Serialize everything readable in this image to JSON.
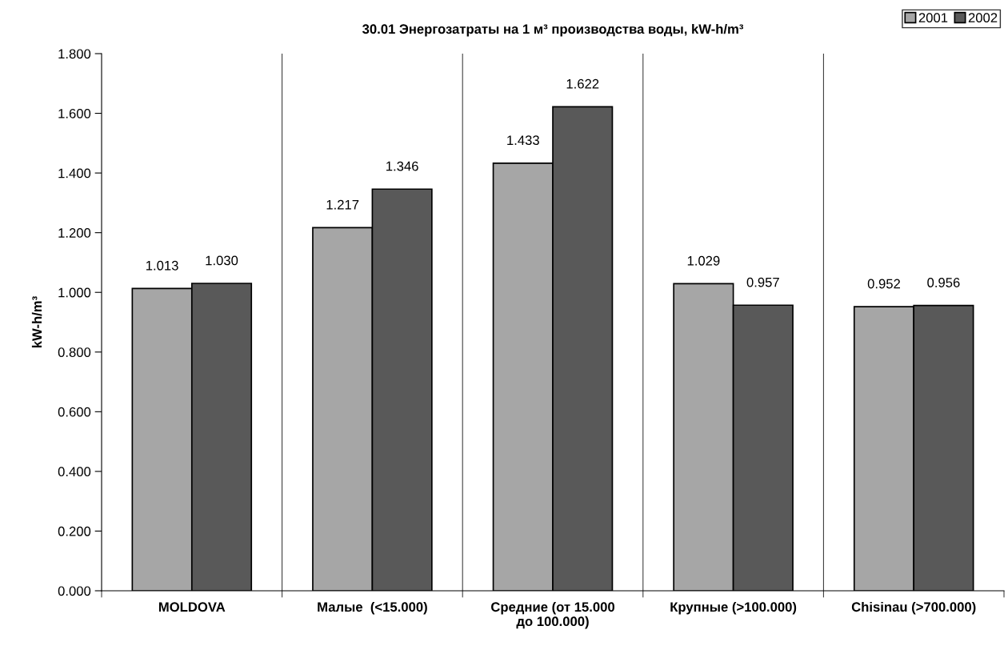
{
  "chart_data": {
    "type": "bar",
    "title": "30.01 Энергозатраты на 1 м³ производства воды, kW-h/m³",
    "ylabel": "kW-h/m³",
    "categories": [
      "MOLDOVA",
      "Малые  (<15.000)",
      "Средние (от 15.000\nдо 100.000)",
      "Крупные (>100.000)",
      "Chisinau (>700.000)"
    ],
    "series": [
      {
        "name": "2001",
        "color": "#a6a6a6",
        "values": [
          1.013,
          1.217,
          1.433,
          1.029,
          0.952
        ],
        "value_labels": [
          "1.013",
          "1.217",
          "1.433",
          "1.029",
          "0.952"
        ]
      },
      {
        "name": "2002",
        "color": "#595959",
        "values": [
          1.03,
          1.346,
          1.622,
          0.957,
          0.956
        ],
        "value_labels": [
          "1.030",
          "1.346",
          "1.622",
          "0.957",
          "0.956"
        ]
      }
    ],
    "ylim": [
      0,
      1.8
    ],
    "yticks": [
      {
        "value": 0,
        "label": "0.000"
      },
      {
        "value": 0.2,
        "label": "0.200"
      },
      {
        "value": 0.4,
        "label": "0.400"
      },
      {
        "value": 0.6,
        "label": "0.600"
      },
      {
        "value": 0.8,
        "label": "0.800"
      },
      {
        "value": 1.0,
        "label": "1.000"
      },
      {
        "value": 1.2,
        "label": "1.200"
      },
      {
        "value": 1.4,
        "label": "1.400"
      },
      {
        "value": 1.6,
        "label": "1.600"
      },
      {
        "value": 1.8,
        "label": "1.800"
      }
    ],
    "grid": "x",
    "legend": "top right"
  }
}
